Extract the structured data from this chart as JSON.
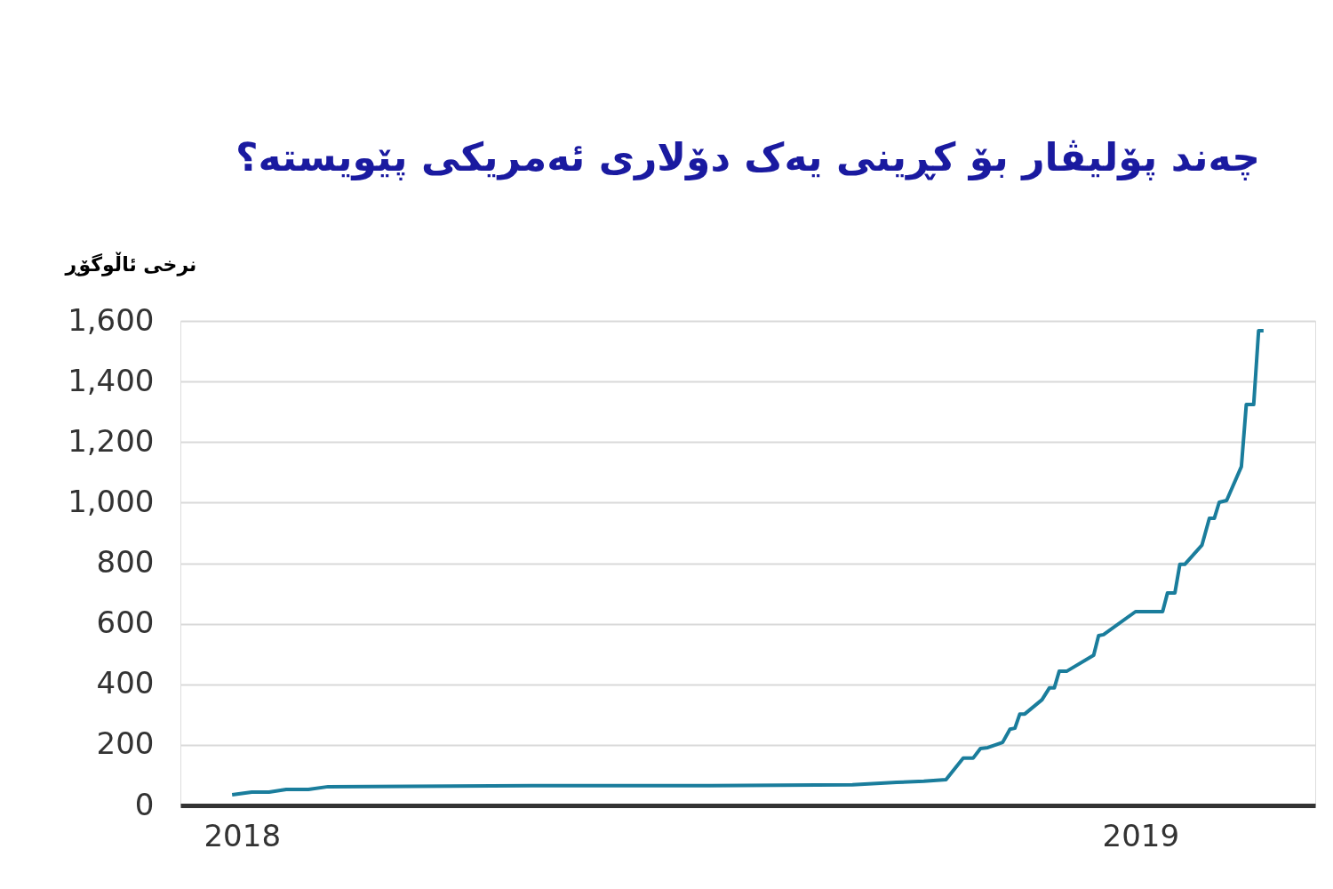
{
  "chart_data": {
    "type": "line",
    "title": "چەند پۆلیڤار بۆ کڕینی یەک دۆلاری ئەمریکی پێویستە؟",
    "ylabel": "نرخی ئاڵوگۆڕ",
    "x": [
      "2017-12-28",
      "2018-01-05",
      "2018-01-12",
      "2018-01-19",
      "2018-01-28",
      "2018-02-05",
      "2018-04-29",
      "2018-07-10",
      "2018-09-06",
      "2018-09-24",
      "2018-10-05",
      "2018-10-14",
      "2018-10-21",
      "2018-10-25",
      "2018-10-28",
      "2018-10-31",
      "2018-11-06",
      "2018-11-09",
      "2018-11-11",
      "2018-11-13",
      "2018-11-15",
      "2018-11-22",
      "2018-11-25",
      "2018-11-27",
      "2018-11-29",
      "2018-12-02",
      "2018-12-13",
      "2018-12-15",
      "2018-12-17",
      "2018-12-30",
      "2019-01-10",
      "2019-01-12",
      "2019-01-15",
      "2019-01-17",
      "2019-01-19",
      "2019-01-26",
      "2019-01-29",
      "2019-01-31",
      "2019-02-02",
      "2019-02-05",
      "2019-02-11",
      "2019-02-13",
      "2019-02-16",
      "2019-02-18",
      "2019-02-20"
    ],
    "values": [
      35,
      44,
      44,
      53,
      53,
      62,
      65,
      65,
      68,
      76,
      80,
      85,
      156,
      156,
      188,
      191,
      208,
      252,
      255,
      302,
      302,
      349,
      388,
      388,
      443,
      443,
      496,
      561,
      564,
      640,
      640,
      702,
      702,
      796,
      796,
      860,
      948,
      948,
      1001,
      1007,
      1119,
      1324,
      1324,
      1568,
      1568
    ],
    "color": "#1a7d9c",
    "line_style": "solid",
    "xlim": [
      "2017-12-07",
      "2019-03-13"
    ],
    "xticks": [
      "2018",
      "2019"
    ],
    "ylim": [
      0,
      1600
    ],
    "yticks": [
      0,
      200,
      400,
      600,
      800,
      {
        "value": 1000,
        "label": "1,000"
      },
      {
        "value": 1200,
        "label": "1,200"
      },
      {
        "value": 1400,
        "label": "1,400"
      },
      {
        "value": 1600,
        "label": "1,600"
      }
    ],
    "grid": "y"
  }
}
